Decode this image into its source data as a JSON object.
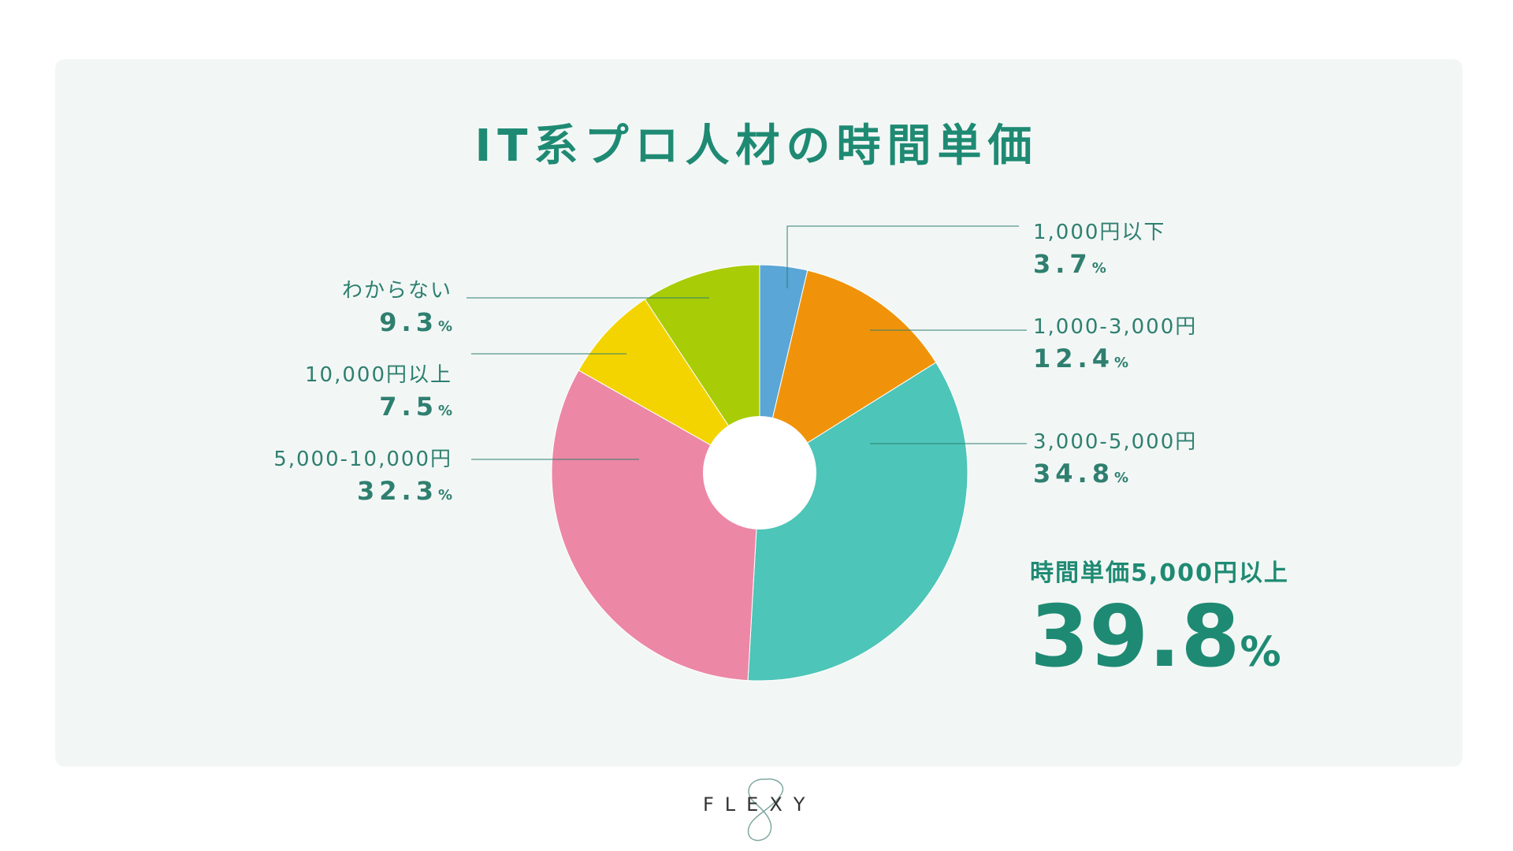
{
  "title": "IT系プロ人材の時間単価",
  "chart_data": {
    "type": "pie",
    "title": "IT系プロ人材の時間単価",
    "unit": "%",
    "slices": [
      {
        "label": "1,000円以下",
        "value": 3.7,
        "color": "#5aa6d6"
      },
      {
        "label": "1,000-3,000円",
        "value": 12.4,
        "color": "#f0930a"
      },
      {
        "label": "3,000-5,000円",
        "value": 34.8,
        "color": "#4dc5b8"
      },
      {
        "label": "5,000-10,000円",
        "value": 32.3,
        "color": "#ec87a5"
      },
      {
        "label": "10,000円以上",
        "value": 7.5,
        "color": "#f3d400"
      },
      {
        "label": "わからない",
        "value": 9.3,
        "color": "#a8cc06"
      }
    ]
  },
  "labels": {
    "l1": {
      "cat": "1,000円以下",
      "val": "3.7"
    },
    "l2": {
      "cat": "1,000-3,000円",
      "val": "12.4"
    },
    "l3": {
      "cat": "3,000-5,000円",
      "val": "34.8"
    },
    "l4": {
      "cat": "5,000-10,000円",
      "val": "32.3"
    },
    "l5": {
      "cat": "10,000円以上",
      "val": "7.5"
    },
    "l6": {
      "cat": "わからない",
      "val": "9.3"
    },
    "pct": "%"
  },
  "highlight": {
    "caption": "時間単価5,000円以上",
    "value": "39.8",
    "unit": "%"
  },
  "logo": {
    "text": "FLEXY"
  }
}
